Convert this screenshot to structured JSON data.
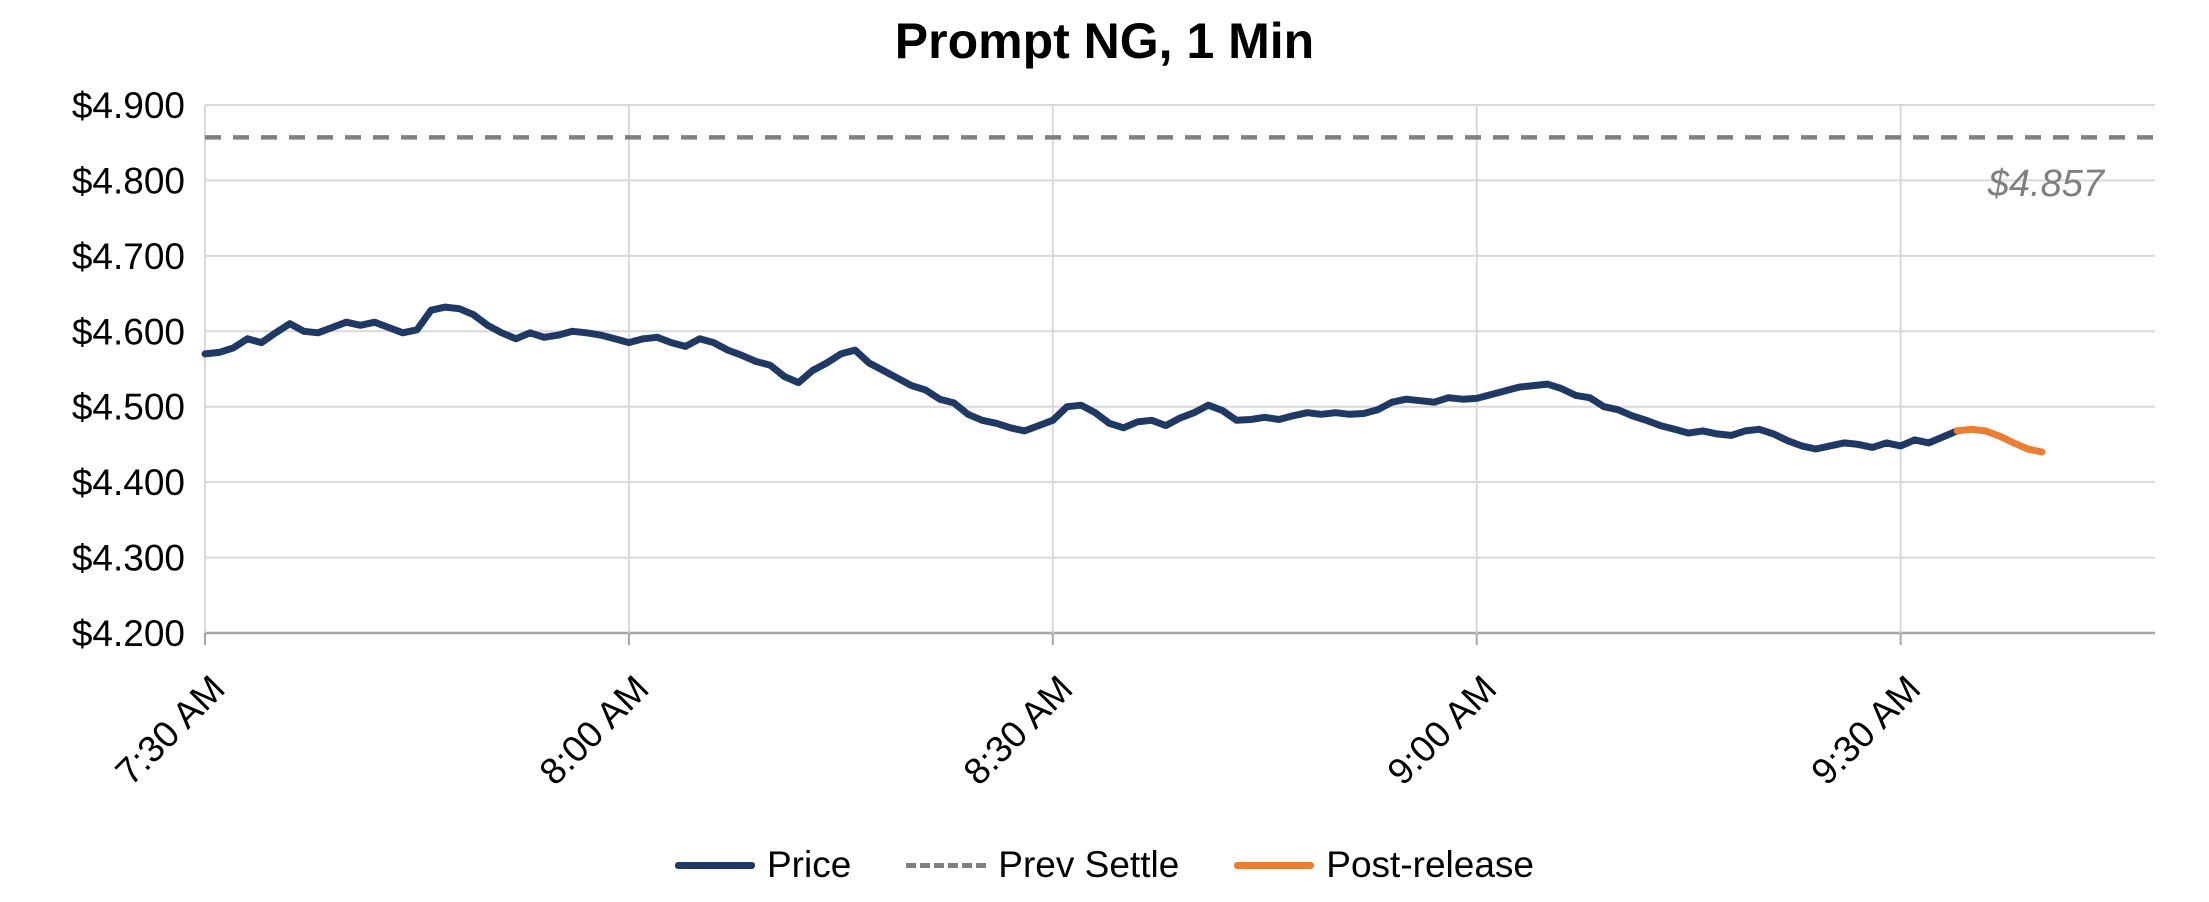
{
  "chart_data": {
    "type": "line",
    "title": "Prompt NG, 1 Min",
    "x_axis": {
      "min": 0,
      "max": 138,
      "unit": "minutes-from-7:30AM",
      "ticks": [
        {
          "min": 0,
          "label": "7:30 AM"
        },
        {
          "min": 30,
          "label": "8:00 AM"
        },
        {
          "min": 60,
          "label": "8:30 AM"
        },
        {
          "min": 90,
          "label": "9:00 AM"
        },
        {
          "min": 120,
          "label": "9:30 AM"
        }
      ]
    },
    "y_axis": {
      "min": 4.2,
      "max": 4.9,
      "step": 0.1,
      "tick_labels": [
        "$4.900",
        "$4.800",
        "$4.700",
        "$4.600",
        "$4.500",
        "$4.400",
        "$4.300",
        "$4.200"
      ]
    },
    "prev_settle": {
      "value": 4.857,
      "label": "$4.857",
      "color": "#808080"
    },
    "series": [
      {
        "name": "Price",
        "color": "#1F3864",
        "style": "solid",
        "x_start_min": 0,
        "step_min": 1,
        "values": [
          4.57,
          4.572,
          4.578,
          4.59,
          4.585,
          4.598,
          4.61,
          4.6,
          4.598,
          4.605,
          4.612,
          4.608,
          4.612,
          4.605,
          4.598,
          4.602,
          4.628,
          4.632,
          4.63,
          4.622,
          4.608,
          4.598,
          4.59,
          4.598,
          4.592,
          4.595,
          4.6,
          4.598,
          4.595,
          4.59,
          4.585,
          4.59,
          4.592,
          4.585,
          4.58,
          4.59,
          4.585,
          4.575,
          4.568,
          4.56,
          4.555,
          4.54,
          4.532,
          4.548,
          4.558,
          4.57,
          4.575,
          4.558,
          4.548,
          4.538,
          4.528,
          4.522,
          4.51,
          4.505,
          4.49,
          4.482,
          4.478,
          4.472,
          4.468,
          4.475,
          4.482,
          4.5,
          4.502,
          4.492,
          4.478,
          4.472,
          4.48,
          4.482,
          4.475,
          4.485,
          4.492,
          4.502,
          4.495,
          4.482,
          4.483,
          4.486,
          4.483,
          4.488,
          4.492,
          4.49,
          4.492,
          4.49,
          4.491,
          4.496,
          4.506,
          4.51,
          4.508,
          4.506,
          4.512,
          4.51,
          4.511,
          4.516,
          4.521,
          4.526,
          4.528,
          4.53,
          4.524,
          4.515,
          4.512,
          4.5,
          4.496,
          4.488,
          4.482,
          4.475,
          4.47,
          4.465,
          4.468,
          4.464,
          4.462,
          4.468,
          4.47,
          4.464,
          4.455,
          4.448,
          4.444,
          4.448,
          4.452,
          4.45,
          4.446,
          4.452,
          4.448,
          4.456,
          4.452,
          4.46,
          4.468
        ]
      },
      {
        "name": "Post-release",
        "color": "#ED7D31",
        "style": "solid",
        "x_start_min": 124,
        "step_min": 1,
        "values": [
          4.468,
          4.47,
          4.468,
          4.461,
          4.452,
          4.444,
          4.44
        ]
      }
    ],
    "legend": [
      {
        "label": "Price",
        "color": "#1F3864",
        "style": "solid"
      },
      {
        "label": "Prev Settle",
        "color": "#808080",
        "style": "dashed"
      },
      {
        "label": "Post-release",
        "color": "#ED7D31",
        "style": "solid"
      }
    ],
    "grid": {
      "horizontal": true,
      "vertical": true,
      "color": "#d9d9d9",
      "axis_color": "#a6a6a6"
    },
    "legend_position": "bottom-center"
  }
}
